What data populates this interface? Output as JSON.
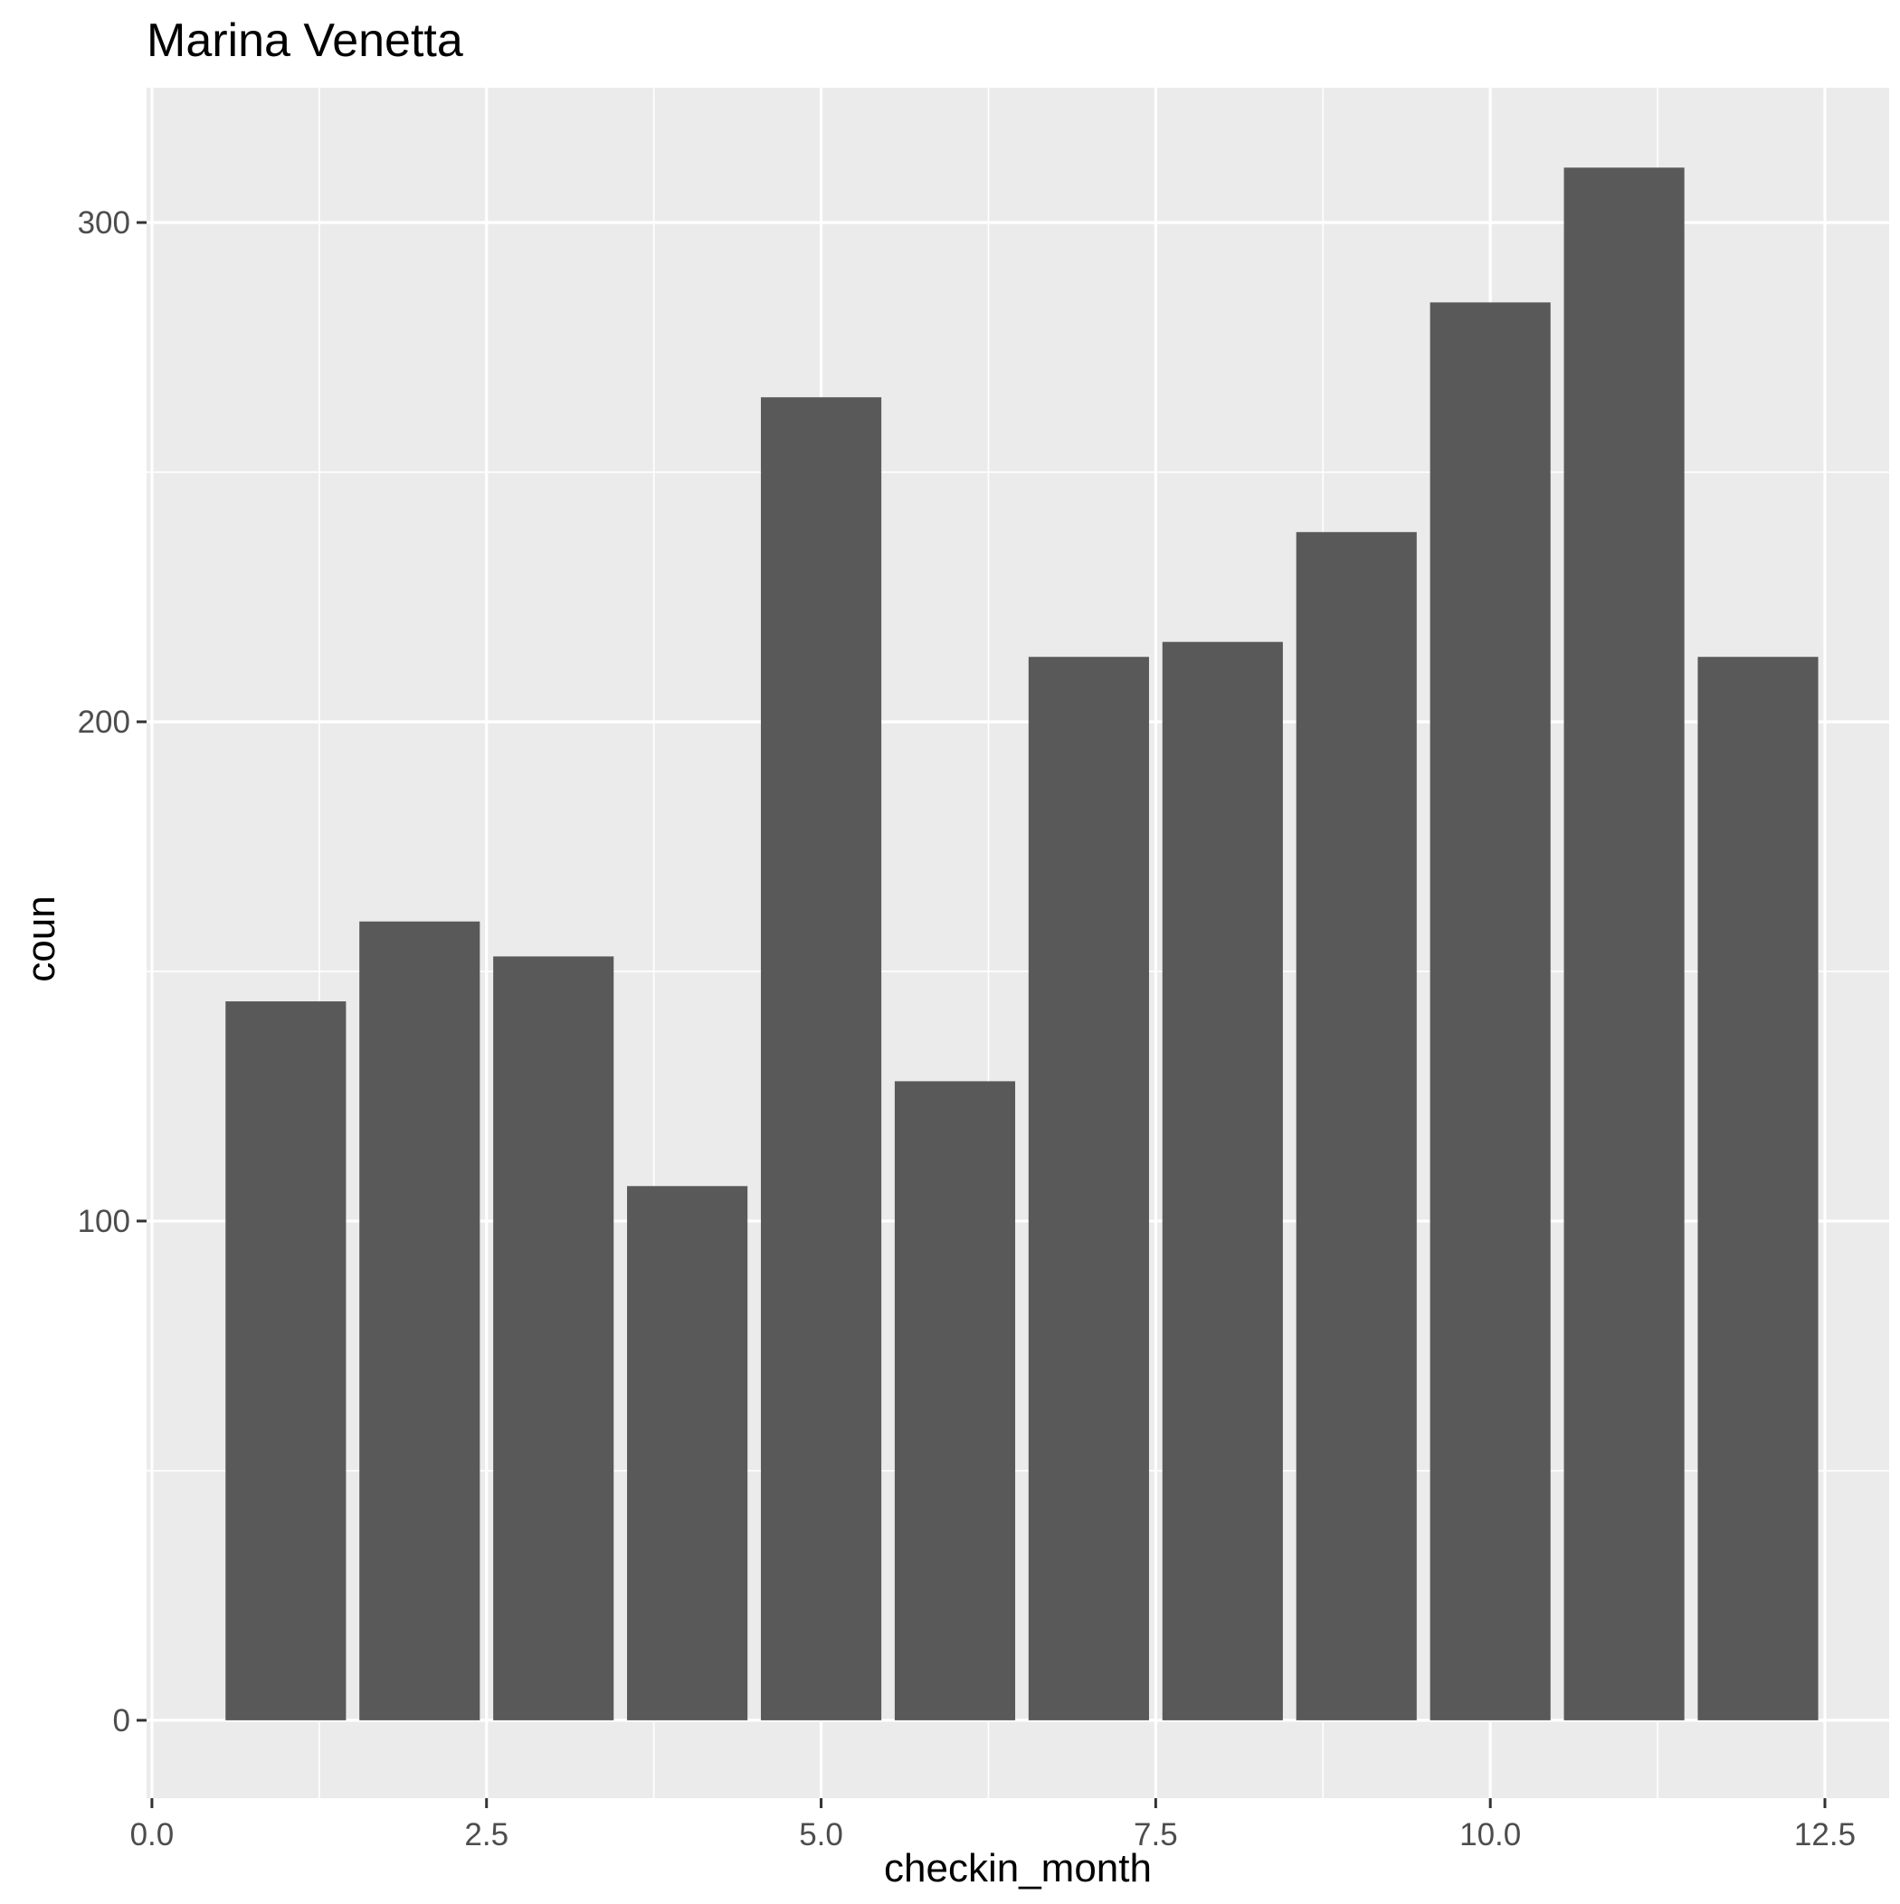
{
  "chart_data": {
    "type": "bar",
    "title": "Marina Venetta",
    "xlabel": "checkin_month",
    "ylabel": "coun",
    "x": [
      1,
      2,
      3,
      4,
      5,
      6,
      7,
      8,
      9,
      10,
      11,
      12
    ],
    "values": [
      144,
      160,
      153,
      107,
      265,
      128,
      213,
      216,
      238,
      284,
      311,
      213
    ],
    "xlim": [
      -0.04,
      12.98
    ],
    "ylim": [
      -15.6,
      327
    ],
    "xticks": [
      "0.0",
      "2.5",
      "5.0",
      "7.5",
      "10.0",
      "12.5"
    ],
    "xtick_values": [
      0,
      2.5,
      5,
      7.5,
      10,
      12.5
    ],
    "yticks": [
      "0",
      "100",
      "200",
      "300"
    ],
    "ytick_values": [
      0,
      100,
      200,
      300
    ],
    "grid": true,
    "legend": "none",
    "colors": {
      "bar": "#595959",
      "panel": "#EBEBEB",
      "grid": "#FFFFFF",
      "tick_text": "#4D4D4D",
      "axis_title": "#000000"
    }
  }
}
